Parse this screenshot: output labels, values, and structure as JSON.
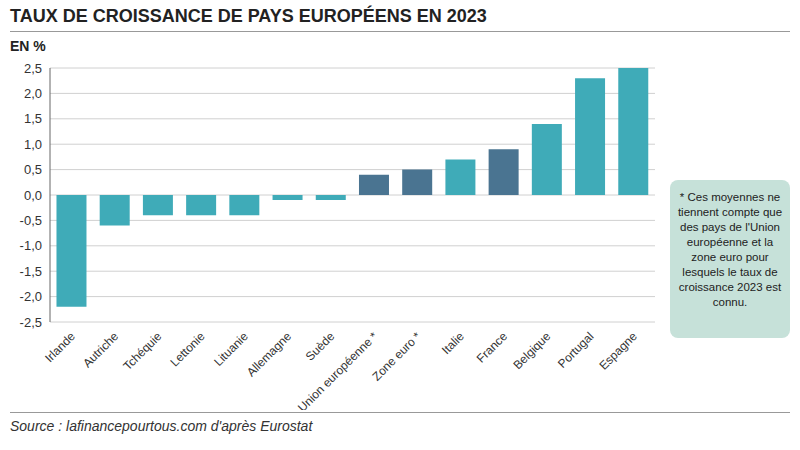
{
  "chart_data": {
    "type": "bar",
    "title": "TAUX DE CROISSANCE DE PAYS EUROPÉENS EN 2023",
    "y_label": "EN %",
    "categories": [
      "Irlande",
      "Autriche",
      "Tchéquie",
      "Lettonie",
      "Lituanie",
      "Allemagne",
      "Suède",
      "Union européenne *",
      "Zone euro *",
      "Italie",
      "France",
      "Belgique",
      "Portugal",
      "Espagne"
    ],
    "values": [
      -2.2,
      -0.6,
      -0.4,
      -0.4,
      -0.4,
      -0.1,
      -0.1,
      0.4,
      0.5,
      0.7,
      0.9,
      1.4,
      2.3,
      2.5
    ],
    "colors": [
      "#3fabb8",
      "#3fabb8",
      "#3fabb8",
      "#3fabb8",
      "#3fabb8",
      "#3fabb8",
      "#3fabb8",
      "#4a7491",
      "#4a7491",
      "#3fabb8",
      "#4a7491",
      "#3fabb8",
      "#3fabb8",
      "#3fabb8"
    ],
    "ylim": [
      -2.5,
      2.5
    ],
    "yticks": [
      {
        "value": 2.5,
        "label": "2,5"
      },
      {
        "value": 2,
        "label": "2,0"
      },
      {
        "value": 1.5,
        "label": "1,5"
      },
      {
        "value": 1,
        "label": "1,0"
      },
      {
        "value": 0.5,
        "label": "0,5"
      },
      {
        "value": 0,
        "label": "0,0"
      },
      {
        "value": -0.5,
        "label": "-0,5"
      },
      {
        "value": -1,
        "label": "-1,0"
      },
      {
        "value": -1.5,
        "label": "-1,5"
      },
      {
        "value": -2,
        "label": "-2,0"
      },
      {
        "value": -2.5,
        "label": "-2,5"
      }
    ],
    "grid": true,
    "note": "* Ces moyennes ne tiennent compte que des pays de l'Union européenne et la zone euro pour lesquels le taux de croissance 2023 est connu.",
    "source": "Source : lafinancepourtous.com d'après Eurostat"
  }
}
